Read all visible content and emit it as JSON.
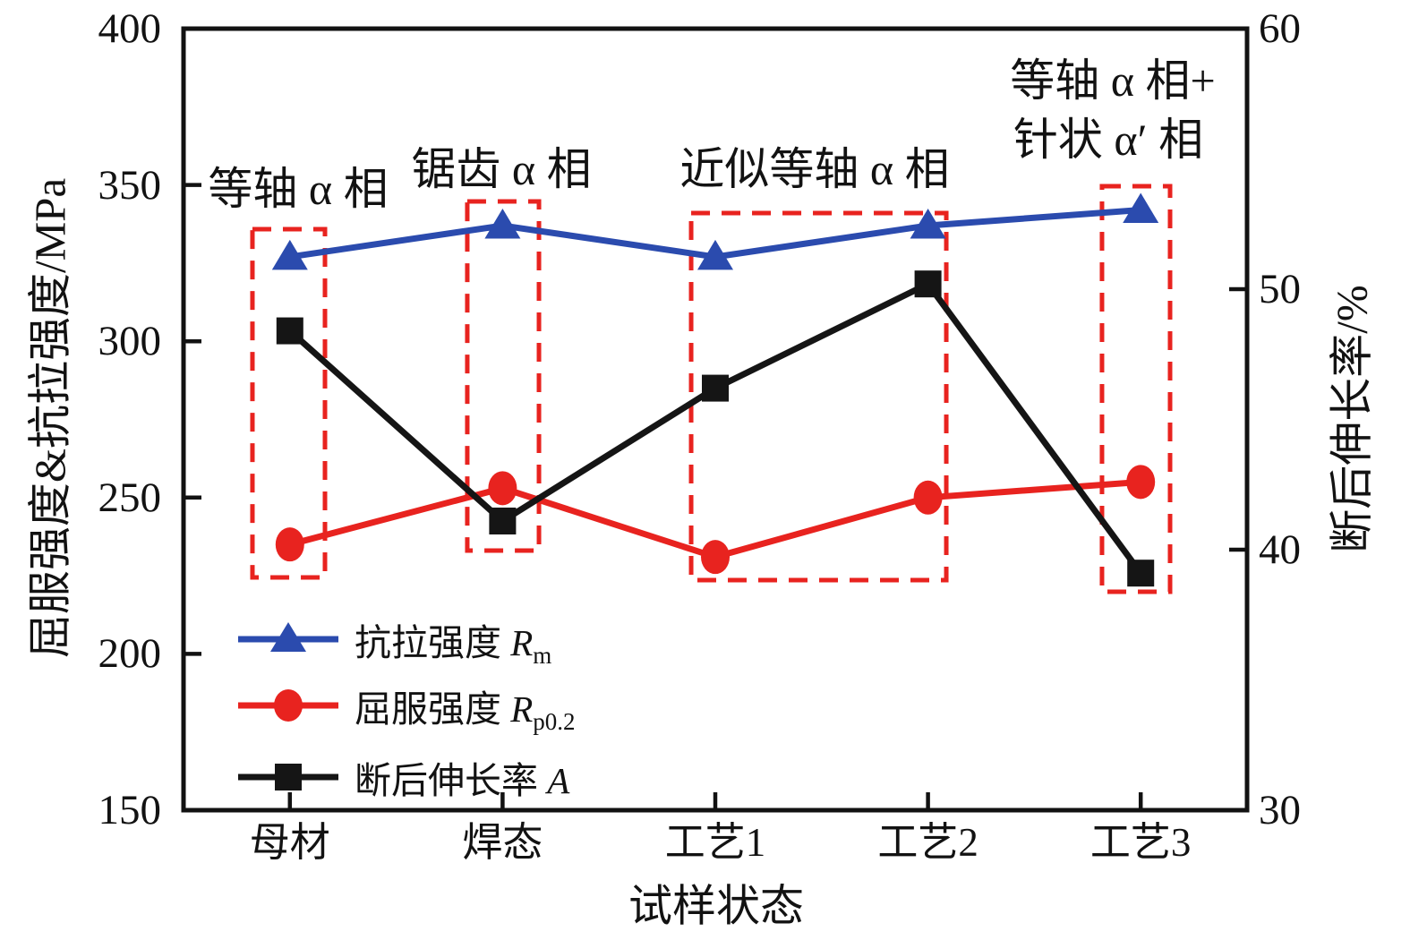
{
  "chart_data": {
    "type": "line",
    "categories": [
      "母材",
      "焊态",
      "工艺1",
      "工艺2",
      "工艺3"
    ],
    "x_axis": {
      "label": "试样状态"
    },
    "left_axis": {
      "label": "屈服强度&抗拉强度/MPa",
      "min": 150,
      "max": 400,
      "ticks": [
        400,
        350,
        300,
        250,
        200,
        150
      ],
      "unit": "MPa"
    },
    "right_axis": {
      "label": "断后伸长率/%",
      "min": 30,
      "max": 60,
      "ticks": [
        60,
        50,
        40,
        30
      ],
      "unit": "%"
    },
    "series": [
      {
        "name": "抗拉强度 Rm",
        "axis": "left",
        "marker": "triangle",
        "color": "#2b4bae",
        "values": [
          327,
          337,
          327,
          337,
          342
        ]
      },
      {
        "name": "屈服强度 Rp0.2",
        "axis": "left",
        "marker": "circle",
        "color": "#e8231f",
        "values": [
          235,
          253,
          231,
          250,
          255
        ]
      },
      {
        "name": "断后伸长率 A",
        "axis": "right",
        "marker": "square",
        "color": "#151515",
        "values": [
          48.4,
          41.1,
          46.2,
          50.2,
          39.1
        ]
      }
    ],
    "annotations": [
      {
        "text": "等轴 α 相"
      },
      {
        "text": "锯齿 α 相"
      },
      {
        "text": "近似等轴 α 相"
      },
      {
        "text": "等轴 α 相+"
      },
      {
        "text": "针状 α′ 相"
      }
    ],
    "highlight_boxes": [
      {
        "phase": "等轴α相",
        "fx0": 0.0648,
        "fx1": 0.133,
        "fy0": 0.2566,
        "fy1": 0.7022,
        "color": "#e8231f"
      },
      {
        "phase": "锯齿α相",
        "fx0": 0.2668,
        "fx1": 0.3342,
        "fy0": 0.2211,
        "fy1": 0.6678,
        "color": "#e8231f"
      },
      {
        "phase": "近似等轴α相",
        "fx0": 0.4773,
        "fx1": 0.7172,
        "fy0": 0.236,
        "fy1": 0.7056,
        "color": "#e8231f"
      },
      {
        "phase": "等轴α相+针状α′相",
        "fx0": 0.8636,
        "fx1": 0.9276,
        "fy0": 0.2016,
        "fy1": 0.7205,
        "color": "#e8231f"
      }
    ],
    "legend_position": "lower-left-inside",
    "grid": "off"
  },
  "legend": {
    "items": [
      {
        "prefix": "抗拉强度 ",
        "symbol": "R",
        "subscript": "m"
      },
      {
        "prefix": "屈服强度 ",
        "symbol": "R",
        "subscript": "p0.2"
      },
      {
        "prefix": "断后伸长率 ",
        "symbol": "A",
        "subscript": ""
      }
    ]
  }
}
